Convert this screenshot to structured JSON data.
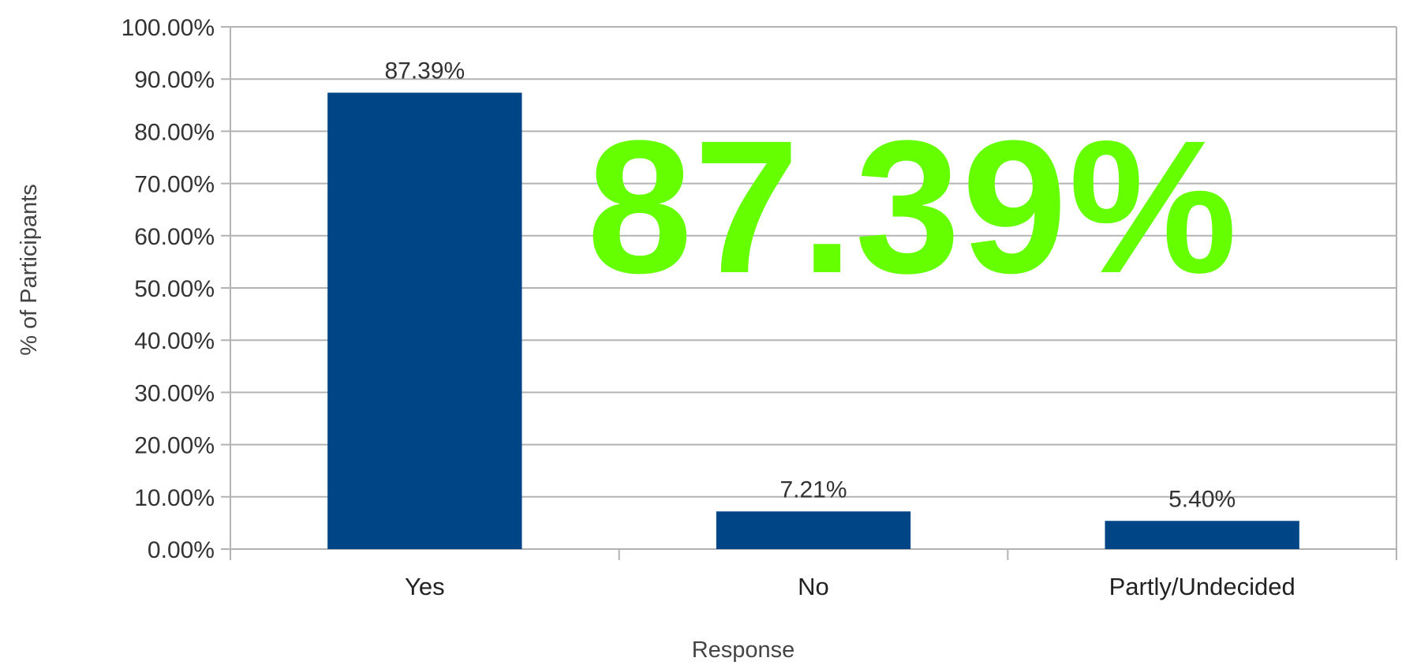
{
  "chart_data": {
    "type": "bar",
    "categories": [
      "Yes",
      "No",
      "Partly/Undecided"
    ],
    "values": [
      87.39,
      7.21,
      5.4
    ],
    "data_labels": [
      "87.39%",
      "7.21%",
      "5.40%"
    ],
    "xlabel": "Response",
    "ylabel": "% of Participants",
    "ylim": [
      0,
      100
    ],
    "yticks": [
      0,
      10,
      20,
      30,
      40,
      50,
      60,
      70,
      80,
      90,
      100
    ],
    "ytick_labels": [
      "0.00%",
      "10.00%",
      "20.00%",
      "30.00%",
      "40.00%",
      "50.00%",
      "60.00%",
      "70.00%",
      "80.00%",
      "90.00%",
      "100.00%"
    ],
    "grid": true,
    "legend": "none",
    "bar_color": "#004586",
    "grid_color": "#b3b3b3"
  },
  "overlay": {
    "text": "87.39%",
    "color": "#66ff00"
  }
}
